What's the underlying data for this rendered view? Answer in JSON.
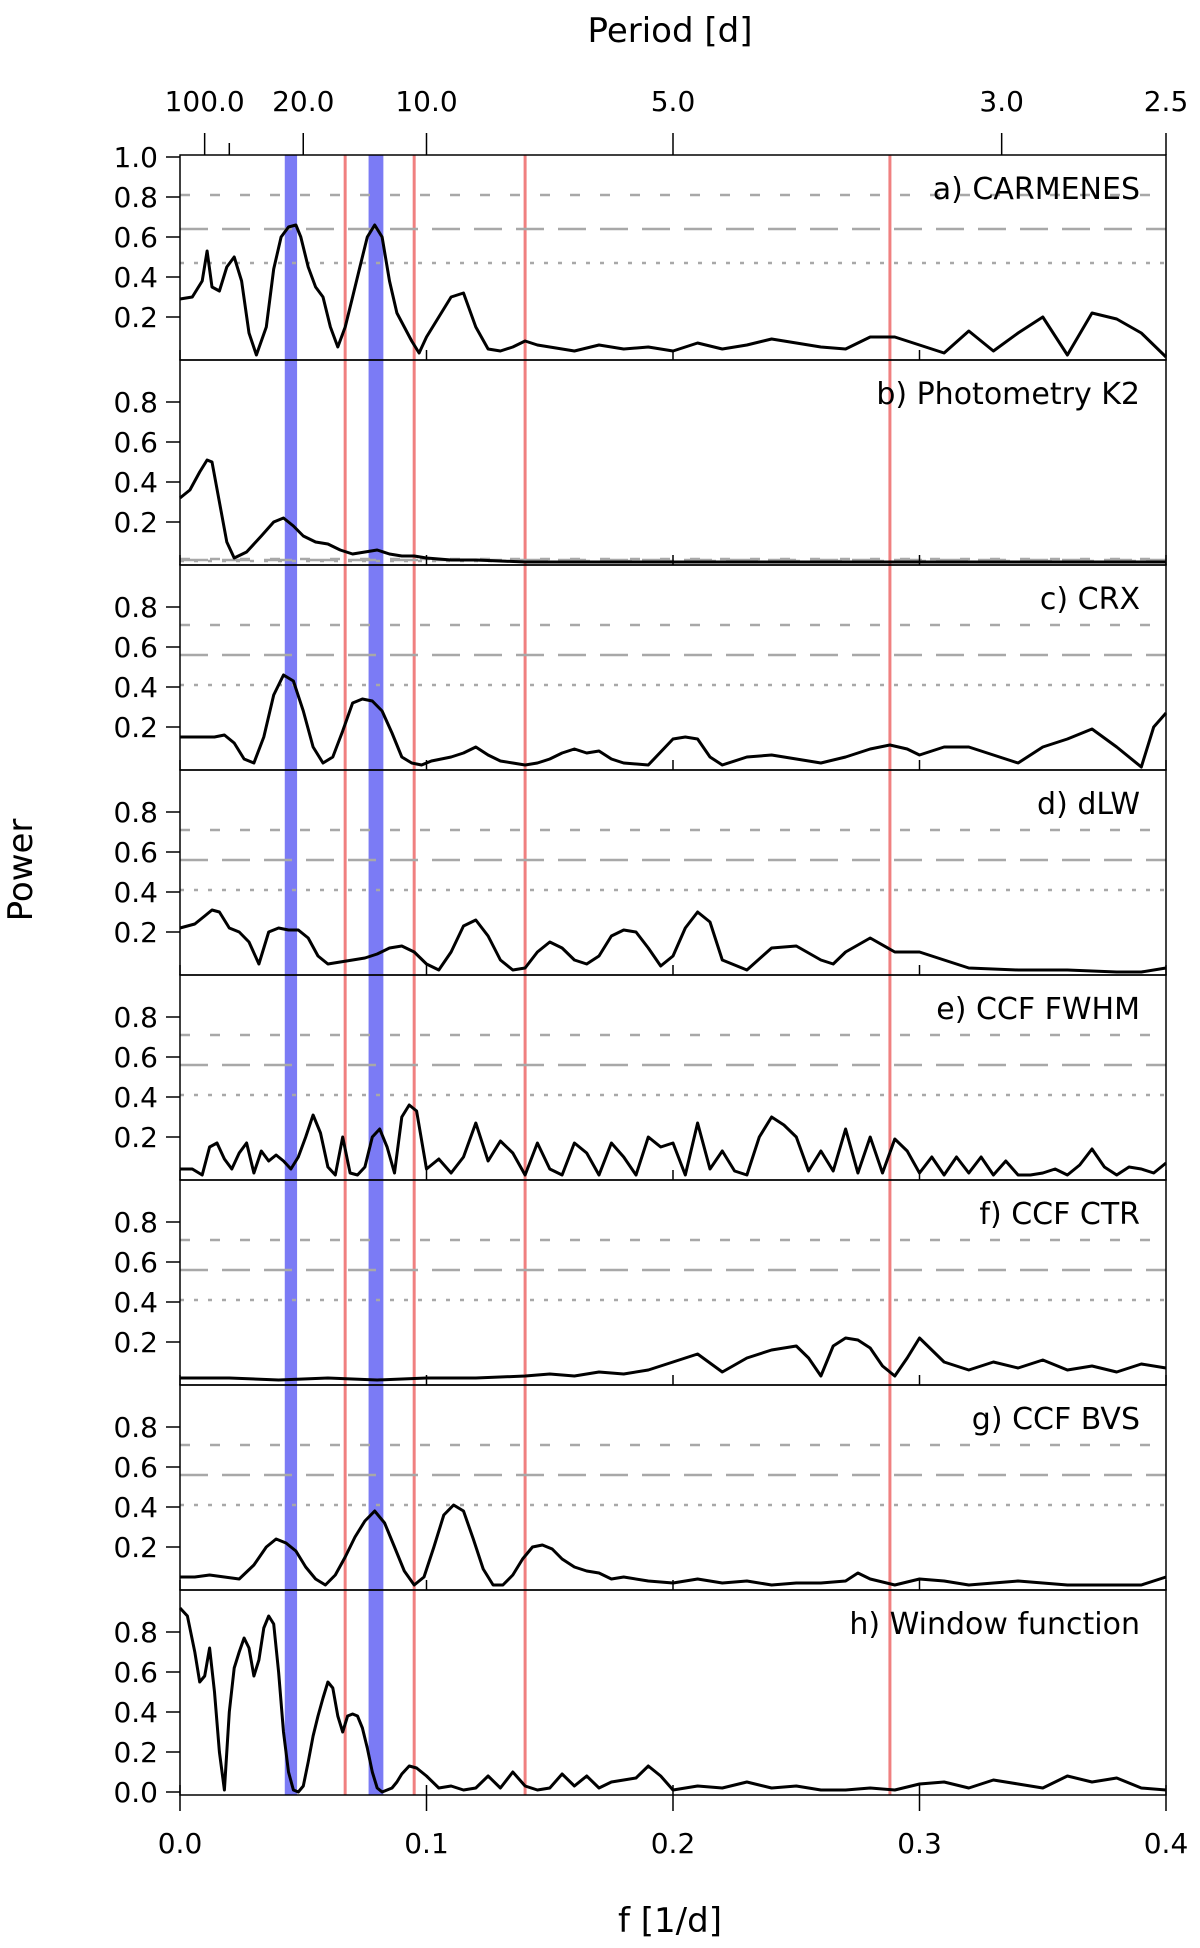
{
  "chart_data": {
    "type": "line",
    "title": "",
    "top_axis": {
      "label": "Period [d]",
      "tick_labels": [
        "100.0",
        "20.0",
        "10.0",
        "5.0",
        "3.0",
        "2.5"
      ],
      "tick_periods": [
        100,
        20,
        10,
        5,
        3,
        2.5
      ],
      "minor_periods": [
        50
      ]
    },
    "xlabel": "f [1/d]",
    "ylabel": "Power",
    "xlim": [
      0,
      0.4
    ],
    "ylim": [
      0,
      1.0
    ],
    "x_ticks": [
      0.0,
      0.1,
      0.2,
      0.3,
      0.4
    ],
    "x_tick_labels": [
      "0.0",
      "0.1",
      "0.2",
      "0.3",
      "0.4"
    ],
    "y_tick_labels_first": [
      "0.2",
      "0.4",
      "0.6",
      "0.8",
      "1.0"
    ],
    "y_tick_labels_middle": [
      "0.2",
      "0.4",
      "0.6",
      "0.8"
    ],
    "y_tick_labels_last": [
      "0.0",
      "0.2",
      "0.4",
      "0.6",
      "0.8"
    ],
    "blue_bands": [
      [
        0.0425,
        0.0475
      ],
      [
        0.0765,
        0.0825
      ]
    ],
    "red_lines": [
      0.067,
      0.095,
      0.14,
      0.288
    ],
    "colors": {
      "blue_band": "#7b7bf5",
      "red_line": "#f08080",
      "fap": "#a8a8a8",
      "curve": "#000000"
    },
    "panels": [
      {
        "label": "a) CARMENES",
        "fap": [
          0.47,
          0.64,
          0.81
        ],
        "x": [
          0,
          0.005,
          0.009,
          0.011,
          0.013,
          0.016,
          0.019,
          0.022,
          0.025,
          0.028,
          0.031,
          0.035,
          0.038,
          0.041,
          0.044,
          0.047,
          0.049,
          0.052,
          0.055,
          0.058,
          0.061,
          0.064,
          0.067,
          0.07,
          0.073,
          0.076,
          0.079,
          0.082,
          0.085,
          0.088,
          0.091,
          0.094,
          0.097,
          0.1,
          0.105,
          0.11,
          0.115,
          0.12,
          0.125,
          0.13,
          0.135,
          0.14,
          0.145,
          0.15,
          0.16,
          0.17,
          0.18,
          0.19,
          0.2,
          0.21,
          0.22,
          0.23,
          0.24,
          0.25,
          0.26,
          0.27,
          0.28,
          0.29,
          0.3,
          0.31,
          0.32,
          0.33,
          0.34,
          0.35,
          0.36,
          0.37,
          0.38,
          0.39,
          0.4
        ],
        "y": [
          0.29,
          0.3,
          0.38,
          0.53,
          0.35,
          0.33,
          0.45,
          0.5,
          0.38,
          0.12,
          0.01,
          0.15,
          0.44,
          0.6,
          0.65,
          0.66,
          0.6,
          0.45,
          0.35,
          0.3,
          0.15,
          0.05,
          0.15,
          0.3,
          0.45,
          0.6,
          0.66,
          0.6,
          0.38,
          0.22,
          0.15,
          0.08,
          0.02,
          0.1,
          0.2,
          0.3,
          0.32,
          0.15,
          0.04,
          0.03,
          0.05,
          0.08,
          0.06,
          0.05,
          0.03,
          0.06,
          0.04,
          0.05,
          0.03,
          0.07,
          0.04,
          0.06,
          0.09,
          0.07,
          0.05,
          0.04,
          0.1,
          0.1,
          0.06,
          0.02,
          0.13,
          0.03,
          0.12,
          0.2,
          0.01,
          0.22,
          0.19,
          0.12,
          0.0
        ]
      },
      {
        "label": "b) Photometry K2",
        "fap": [
          0.005,
          0.01,
          0.015
        ],
        "x": [
          0,
          0.004,
          0.008,
          0.011,
          0.013,
          0.016,
          0.019,
          0.022,
          0.027,
          0.033,
          0.038,
          0.042,
          0.046,
          0.05,
          0.055,
          0.06,
          0.065,
          0.07,
          0.075,
          0.08,
          0.085,
          0.09,
          0.095,
          0.1,
          0.11,
          0.12,
          0.14,
          0.2,
          0.3,
          0.4
        ],
        "y": [
          0.32,
          0.36,
          0.45,
          0.51,
          0.5,
          0.3,
          0.1,
          0.02,
          0.05,
          0.13,
          0.2,
          0.22,
          0.18,
          0.13,
          0.1,
          0.09,
          0.06,
          0.04,
          0.05,
          0.06,
          0.04,
          0.03,
          0.03,
          0.02,
          0.01,
          0.01,
          0.0,
          0.0,
          0.0,
          0.0
        ]
      },
      {
        "label": "c) CRX",
        "fap": [
          0.41,
          0.56,
          0.71
        ],
        "x": [
          0,
          0.008,
          0.014,
          0.018,
          0.022,
          0.026,
          0.03,
          0.034,
          0.038,
          0.042,
          0.046,
          0.05,
          0.054,
          0.058,
          0.062,
          0.066,
          0.07,
          0.074,
          0.078,
          0.082,
          0.086,
          0.09,
          0.094,
          0.098,
          0.102,
          0.106,
          0.11,
          0.115,
          0.12,
          0.125,
          0.13,
          0.135,
          0.14,
          0.145,
          0.15,
          0.155,
          0.16,
          0.165,
          0.17,
          0.175,
          0.18,
          0.19,
          0.2,
          0.205,
          0.21,
          0.215,
          0.22,
          0.23,
          0.24,
          0.25,
          0.26,
          0.27,
          0.28,
          0.288,
          0.295,
          0.3,
          0.31,
          0.32,
          0.33,
          0.34,
          0.35,
          0.36,
          0.37,
          0.38,
          0.39,
          0.395,
          0.4
        ],
        "y": [
          0.15,
          0.15,
          0.15,
          0.16,
          0.12,
          0.04,
          0.02,
          0.15,
          0.36,
          0.46,
          0.43,
          0.28,
          0.1,
          0.02,
          0.05,
          0.18,
          0.32,
          0.34,
          0.33,
          0.28,
          0.17,
          0.05,
          0.02,
          0.01,
          0.03,
          0.04,
          0.05,
          0.07,
          0.1,
          0.06,
          0.03,
          0.02,
          0.01,
          0.02,
          0.04,
          0.07,
          0.09,
          0.07,
          0.08,
          0.04,
          0.02,
          0.01,
          0.14,
          0.15,
          0.14,
          0.05,
          0.01,
          0.05,
          0.06,
          0.04,
          0.02,
          0.05,
          0.09,
          0.11,
          0.09,
          0.06,
          0.1,
          0.1,
          0.06,
          0.02,
          0.1,
          0.14,
          0.19,
          0.1,
          0.0,
          0.2,
          0.27
        ]
      },
      {
        "label": "d) dLW",
        "fap": [
          0.41,
          0.56,
          0.71
        ],
        "x": [
          0,
          0.006,
          0.01,
          0.013,
          0.016,
          0.02,
          0.024,
          0.028,
          0.032,
          0.036,
          0.04,
          0.044,
          0.048,
          0.052,
          0.056,
          0.06,
          0.065,
          0.07,
          0.075,
          0.08,
          0.085,
          0.09,
          0.095,
          0.1,
          0.105,
          0.11,
          0.115,
          0.12,
          0.125,
          0.13,
          0.135,
          0.14,
          0.145,
          0.15,
          0.155,
          0.16,
          0.165,
          0.17,
          0.175,
          0.18,
          0.185,
          0.19,
          0.195,
          0.2,
          0.205,
          0.21,
          0.215,
          0.22,
          0.23,
          0.24,
          0.25,
          0.26,
          0.265,
          0.27,
          0.28,
          0.29,
          0.3,
          0.31,
          0.32,
          0.34,
          0.36,
          0.38,
          0.39,
          0.4
        ],
        "y": [
          0.22,
          0.24,
          0.28,
          0.31,
          0.3,
          0.22,
          0.2,
          0.15,
          0.04,
          0.2,
          0.22,
          0.21,
          0.21,
          0.17,
          0.08,
          0.04,
          0.05,
          0.06,
          0.07,
          0.09,
          0.12,
          0.13,
          0.1,
          0.04,
          0.01,
          0.1,
          0.23,
          0.26,
          0.18,
          0.06,
          0.01,
          0.02,
          0.1,
          0.15,
          0.12,
          0.06,
          0.04,
          0.08,
          0.18,
          0.21,
          0.2,
          0.12,
          0.03,
          0.08,
          0.22,
          0.3,
          0.25,
          0.06,
          0.01,
          0.12,
          0.13,
          0.06,
          0.04,
          0.1,
          0.17,
          0.1,
          0.1,
          0.06,
          0.02,
          0.01,
          0.01,
          0.0,
          0.0,
          0.02
        ]
      },
      {
        "label": "e) CCF FWHM",
        "fap": [
          0.41,
          0.56,
          0.71
        ],
        "x": [
          0,
          0.005,
          0.009,
          0.012,
          0.015,
          0.018,
          0.021,
          0.024,
          0.027,
          0.03,
          0.033,
          0.036,
          0.039,
          0.042,
          0.045,
          0.048,
          0.051,
          0.054,
          0.057,
          0.06,
          0.063,
          0.066,
          0.069,
          0.072,
          0.075,
          0.078,
          0.081,
          0.084,
          0.087,
          0.09,
          0.093,
          0.096,
          0.1,
          0.105,
          0.11,
          0.115,
          0.12,
          0.125,
          0.13,
          0.135,
          0.14,
          0.145,
          0.15,
          0.155,
          0.16,
          0.165,
          0.17,
          0.175,
          0.18,
          0.185,
          0.19,
          0.195,
          0.2,
          0.205,
          0.21,
          0.215,
          0.22,
          0.225,
          0.23,
          0.235,
          0.24,
          0.245,
          0.25,
          0.255,
          0.26,
          0.265,
          0.27,
          0.275,
          0.28,
          0.285,
          0.29,
          0.295,
          0.3,
          0.305,
          0.31,
          0.315,
          0.32,
          0.325,
          0.33,
          0.335,
          0.34,
          0.345,
          0.35,
          0.355,
          0.36,
          0.365,
          0.37,
          0.375,
          0.38,
          0.385,
          0.39,
          0.395,
          0.4
        ],
        "y": [
          0.04,
          0.04,
          0.01,
          0.15,
          0.17,
          0.09,
          0.04,
          0.12,
          0.17,
          0.02,
          0.13,
          0.08,
          0.11,
          0.08,
          0.04,
          0.1,
          0.2,
          0.31,
          0.22,
          0.05,
          0.01,
          0.2,
          0.02,
          0.01,
          0.05,
          0.2,
          0.24,
          0.15,
          0.02,
          0.3,
          0.36,
          0.33,
          0.04,
          0.09,
          0.02,
          0.1,
          0.27,
          0.08,
          0.18,
          0.12,
          0.01,
          0.17,
          0.04,
          0.01,
          0.17,
          0.12,
          0.01,
          0.17,
          0.1,
          0.01,
          0.2,
          0.15,
          0.17,
          0.01,
          0.27,
          0.04,
          0.13,
          0.03,
          0.01,
          0.2,
          0.3,
          0.26,
          0.2,
          0.03,
          0.13,
          0.03,
          0.24,
          0.02,
          0.2,
          0.02,
          0.19,
          0.13,
          0.02,
          0.1,
          0.01,
          0.1,
          0.02,
          0.1,
          0.01,
          0.08,
          0.01,
          0.01,
          0.02,
          0.04,
          0.01,
          0.06,
          0.14,
          0.05,
          0.01,
          0.05,
          0.04,
          0.02,
          0.07
        ]
      },
      {
        "label": "f) CCF CTR",
        "fap": [
          0.41,
          0.56,
          0.71
        ],
        "x": [
          0,
          0.02,
          0.04,
          0.06,
          0.08,
          0.1,
          0.12,
          0.14,
          0.15,
          0.16,
          0.17,
          0.18,
          0.19,
          0.2,
          0.21,
          0.22,
          0.23,
          0.24,
          0.25,
          0.255,
          0.26,
          0.265,
          0.27,
          0.275,
          0.28,
          0.285,
          0.29,
          0.295,
          0.3,
          0.31,
          0.32,
          0.33,
          0.34,
          0.35,
          0.36,
          0.37,
          0.38,
          0.39,
          0.4
        ],
        "y": [
          0.02,
          0.02,
          0.01,
          0.02,
          0.01,
          0.02,
          0.02,
          0.03,
          0.04,
          0.03,
          0.05,
          0.04,
          0.06,
          0.1,
          0.14,
          0.05,
          0.12,
          0.16,
          0.18,
          0.12,
          0.03,
          0.18,
          0.22,
          0.21,
          0.17,
          0.08,
          0.03,
          0.12,
          0.22,
          0.1,
          0.06,
          0.1,
          0.07,
          0.11,
          0.06,
          0.08,
          0.05,
          0.09,
          0.07
        ]
      },
      {
        "label": "g) CCF BVS",
        "fap": [
          0.41,
          0.56,
          0.71
        ],
        "x": [
          0,
          0.006,
          0.012,
          0.018,
          0.024,
          0.03,
          0.035,
          0.039,
          0.043,
          0.047,
          0.051,
          0.055,
          0.059,
          0.063,
          0.067,
          0.071,
          0.075,
          0.079,
          0.083,
          0.087,
          0.091,
          0.095,
          0.099,
          0.103,
          0.107,
          0.111,
          0.115,
          0.119,
          0.123,
          0.127,
          0.131,
          0.135,
          0.139,
          0.143,
          0.147,
          0.151,
          0.155,
          0.16,
          0.165,
          0.17,
          0.175,
          0.18,
          0.19,
          0.2,
          0.21,
          0.22,
          0.23,
          0.24,
          0.25,
          0.26,
          0.27,
          0.275,
          0.28,
          0.29,
          0.3,
          0.31,
          0.32,
          0.33,
          0.34,
          0.35,
          0.36,
          0.37,
          0.38,
          0.39,
          0.4
        ],
        "y": [
          0.05,
          0.05,
          0.06,
          0.05,
          0.04,
          0.11,
          0.2,
          0.24,
          0.22,
          0.18,
          0.1,
          0.04,
          0.01,
          0.06,
          0.15,
          0.25,
          0.33,
          0.38,
          0.32,
          0.2,
          0.08,
          0.01,
          0.05,
          0.2,
          0.36,
          0.41,
          0.38,
          0.24,
          0.09,
          0.01,
          0.01,
          0.06,
          0.14,
          0.2,
          0.21,
          0.19,
          0.14,
          0.1,
          0.08,
          0.07,
          0.04,
          0.05,
          0.03,
          0.02,
          0.04,
          0.02,
          0.03,
          0.01,
          0.02,
          0.02,
          0.03,
          0.07,
          0.04,
          0.01,
          0.04,
          0.03,
          0.01,
          0.02,
          0.03,
          0.02,
          0.01,
          0.01,
          0.01,
          0.01,
          0.05
        ]
      },
      {
        "label": "h) Window function",
        "fap": [],
        "x": [
          0,
          0.003,
          0.006,
          0.008,
          0.01,
          0.012,
          0.014,
          0.016,
          0.018,
          0.02,
          0.022,
          0.024,
          0.026,
          0.028,
          0.03,
          0.032,
          0.034,
          0.036,
          0.038,
          0.04,
          0.042,
          0.044,
          0.046,
          0.048,
          0.05,
          0.052,
          0.054,
          0.056,
          0.058,
          0.06,
          0.062,
          0.064,
          0.066,
          0.068,
          0.07,
          0.072,
          0.074,
          0.076,
          0.078,
          0.08,
          0.082,
          0.084,
          0.086,
          0.088,
          0.09,
          0.093,
          0.096,
          0.1,
          0.105,
          0.11,
          0.115,
          0.12,
          0.125,
          0.13,
          0.135,
          0.14,
          0.145,
          0.15,
          0.155,
          0.16,
          0.165,
          0.17,
          0.175,
          0.18,
          0.185,
          0.19,
          0.195,
          0.2,
          0.21,
          0.22,
          0.23,
          0.24,
          0.25,
          0.26,
          0.27,
          0.28,
          0.29,
          0.3,
          0.31,
          0.32,
          0.33,
          0.34,
          0.35,
          0.36,
          0.37,
          0.38,
          0.39,
          0.4
        ],
        "y": [
          0.92,
          0.88,
          0.7,
          0.55,
          0.58,
          0.72,
          0.5,
          0.2,
          0.01,
          0.4,
          0.62,
          0.7,
          0.77,
          0.72,
          0.58,
          0.66,
          0.82,
          0.88,
          0.84,
          0.6,
          0.3,
          0.1,
          0.01,
          0.0,
          0.03,
          0.15,
          0.28,
          0.38,
          0.47,
          0.55,
          0.52,
          0.38,
          0.3,
          0.38,
          0.39,
          0.38,
          0.32,
          0.22,
          0.1,
          0.02,
          0.0,
          0.01,
          0.02,
          0.05,
          0.09,
          0.13,
          0.12,
          0.08,
          0.02,
          0.03,
          0.01,
          0.02,
          0.08,
          0.02,
          0.1,
          0.03,
          0.01,
          0.02,
          0.09,
          0.03,
          0.08,
          0.02,
          0.05,
          0.06,
          0.07,
          0.13,
          0.08,
          0.01,
          0.03,
          0.02,
          0.05,
          0.02,
          0.03,
          0.01,
          0.01,
          0.02,
          0.01,
          0.04,
          0.05,
          0.02,
          0.06,
          0.04,
          0.02,
          0.08,
          0.05,
          0.07,
          0.02,
          0.01
        ]
      }
    ]
  }
}
